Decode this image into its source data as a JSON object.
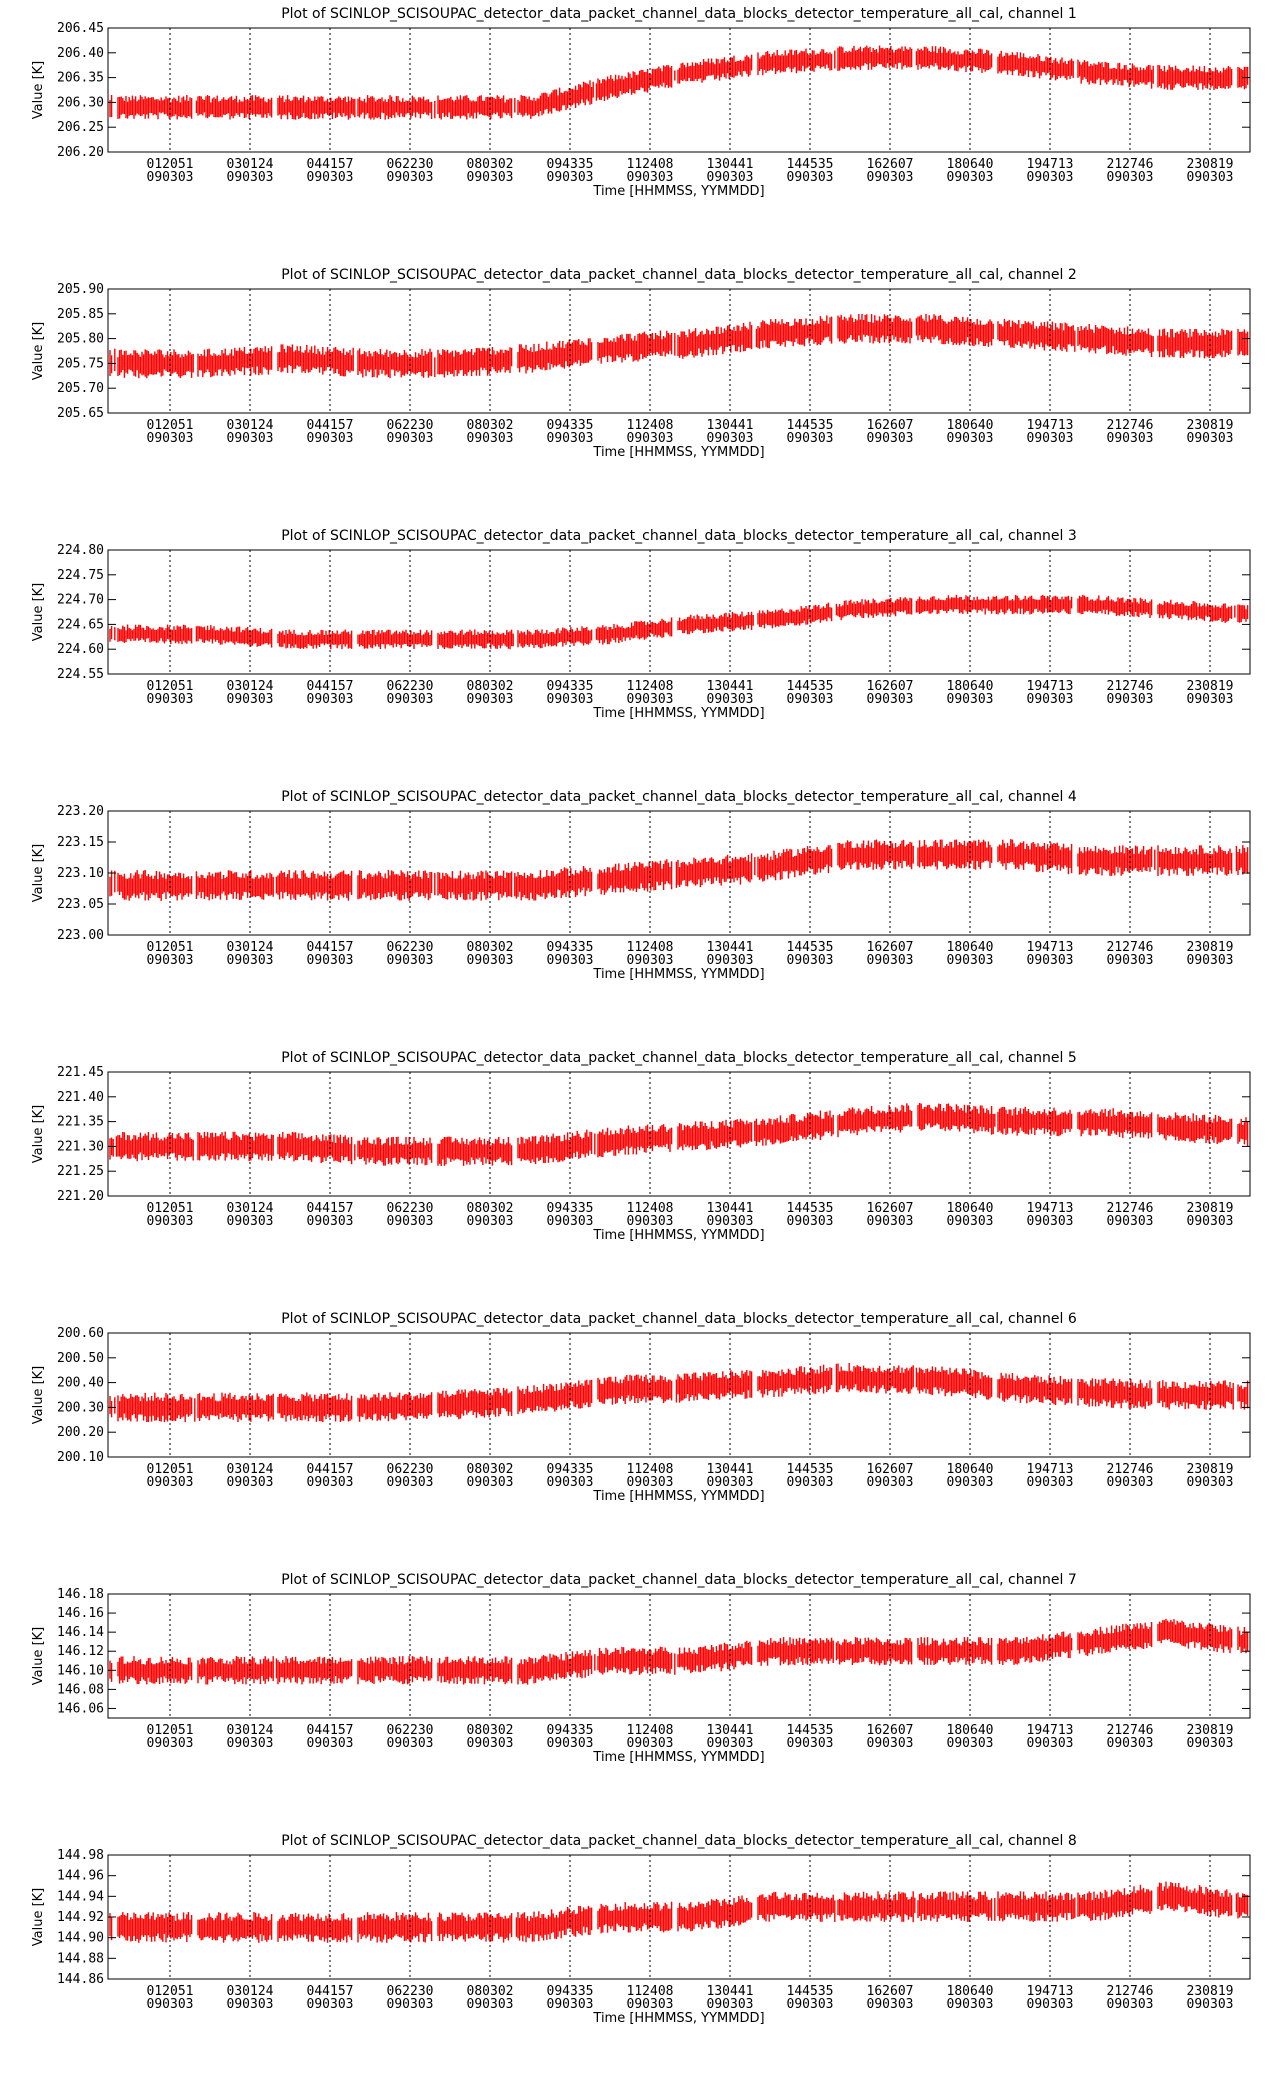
{
  "colors": {
    "data": "#ff0000",
    "axes": "#000000",
    "background": "#ffffff"
  },
  "chart_data": [
    {
      "type": "line",
      "title": "Plot of SCINLOP_SCISOUPAC_detector_data_packet_channel_data_blocks_detector_temperature_all_cal, channel 1",
      "xlabel": "Time [HHMMSS, YYMMDD]",
      "ylabel": "Value [K]",
      "y_ticks": [
        "206.20",
        "206.25",
        "206.30",
        "206.35",
        "206.40",
        "206.45"
      ],
      "ylim": [
        206.2,
        206.45
      ],
      "x_ticks": [
        {
          "time": "012051",
          "date": "090303"
        },
        {
          "time": "030124",
          "date": "090303"
        },
        {
          "time": "044157",
          "date": "090303"
        },
        {
          "time": "062230",
          "date": "090303"
        },
        {
          "time": "080302",
          "date": "090303"
        },
        {
          "time": "094335",
          "date": "090303"
        },
        {
          "time": "112408",
          "date": "090303"
        },
        {
          "time": "130441",
          "date": "090303"
        },
        {
          "time": "144535",
          "date": "090303"
        },
        {
          "time": "162607",
          "date": "090303"
        },
        {
          "time": "180640",
          "date": "090303"
        },
        {
          "time": "194713",
          "date": "090303"
        },
        {
          "time": "212746",
          "date": "090303"
        },
        {
          "time": "230819",
          "date": "090303"
        }
      ],
      "grid": "vertical dotted at x ticks",
      "series": [
        {
          "x": [
            0.5,
            1.5,
            2.5,
            3.5,
            4.5,
            5.5,
            6.5,
            7.5,
            8.5,
            9.5,
            10.5,
            11.5,
            12.5,
            13.5
          ],
          "values": [
            206.29,
            206.29,
            206.29,
            206.29,
            206.29,
            206.33,
            206.36,
            206.38,
            206.39,
            206.39,
            206.38,
            206.36,
            206.35,
            206.35
          ],
          "spread": 0.05
        }
      ]
    },
    {
      "type": "line",
      "title": "Plot of SCINLOP_SCISOUPAC_detector_data_packet_channel_data_blocks_detector_temperature_all_cal, channel 2",
      "xlabel": "Time [HHMMSS, YYMMDD]",
      "ylabel": "Value [K]",
      "y_ticks": [
        "205.65",
        "205.70",
        "205.75",
        "205.80",
        "205.85",
        "205.90"
      ],
      "ylim": [
        205.65,
        205.9
      ],
      "x_ticks": [
        {
          "time": "012051",
          "date": "090303"
        },
        {
          "time": "030124",
          "date": "090303"
        },
        {
          "time": "044157",
          "date": "090303"
        },
        {
          "time": "062230",
          "date": "090303"
        },
        {
          "time": "080302",
          "date": "090303"
        },
        {
          "time": "094335",
          "date": "090303"
        },
        {
          "time": "112408",
          "date": "090303"
        },
        {
          "time": "130441",
          "date": "090303"
        },
        {
          "time": "144535",
          "date": "090303"
        },
        {
          "time": "162607",
          "date": "090303"
        },
        {
          "time": "180640",
          "date": "090303"
        },
        {
          "time": "194713",
          "date": "090303"
        },
        {
          "time": "212746",
          "date": "090303"
        },
        {
          "time": "230819",
          "date": "090303"
        }
      ],
      "grid": "vertical dotted at x ticks",
      "series": [
        {
          "x": [
            0.5,
            1.5,
            2.5,
            3.5,
            4.5,
            5.5,
            6.5,
            7.5,
            8.5,
            9.5,
            10.5,
            11.5,
            12.5,
            13.5
          ],
          "values": [
            205.75,
            205.76,
            205.75,
            205.75,
            205.76,
            205.78,
            205.79,
            205.81,
            205.82,
            205.82,
            205.81,
            205.8,
            205.79,
            205.79
          ],
          "spread": 0.06
        }
      ]
    },
    {
      "type": "line",
      "title": "Plot of SCINLOP_SCISOUPAC_detector_data_packet_channel_data_blocks_detector_temperature_all_cal, channel 3",
      "xlabel": "Time [HHMMSS, YYMMDD]",
      "ylabel": "Value [K]",
      "y_ticks": [
        "224.55",
        "224.60",
        "224.65",
        "224.70",
        "224.75",
        "224.80"
      ],
      "ylim": [
        224.55,
        224.8
      ],
      "x_ticks": [
        {
          "time": "012051",
          "date": "090303"
        },
        {
          "time": "030124",
          "date": "090303"
        },
        {
          "time": "044157",
          "date": "090303"
        },
        {
          "time": "062230",
          "date": "090303"
        },
        {
          "time": "080302",
          "date": "090303"
        },
        {
          "time": "094335",
          "date": "090303"
        },
        {
          "time": "112408",
          "date": "090303"
        },
        {
          "time": "130441",
          "date": "090303"
        },
        {
          "time": "144535",
          "date": "090303"
        },
        {
          "time": "162607",
          "date": "090303"
        },
        {
          "time": "180640",
          "date": "090303"
        },
        {
          "time": "194713",
          "date": "090303"
        },
        {
          "time": "212746",
          "date": "090303"
        },
        {
          "time": "230819",
          "date": "090303"
        }
      ],
      "grid": "vertical dotted at x ticks",
      "series": [
        {
          "x": [
            0.5,
            1.5,
            2.5,
            3.5,
            4.5,
            5.5,
            6.5,
            7.5,
            8.5,
            9.5,
            10.5,
            11.5,
            12.5,
            13.5
          ],
          "values": [
            224.63,
            224.62,
            224.62,
            224.62,
            224.62,
            224.63,
            224.65,
            224.66,
            224.68,
            224.69,
            224.69,
            224.69,
            224.68,
            224.67
          ],
          "spread": 0.04
        }
      ]
    },
    {
      "type": "line",
      "title": "Plot of SCINLOP_SCISOUPAC_detector_data_packet_channel_data_blocks_detector_temperature_all_cal, channel 4",
      "xlabel": "Time [HHMMSS, YYMMDD]",
      "ylabel": "Value [K]",
      "y_ticks": [
        "223.00",
        "223.05",
        "223.10",
        "223.15",
        "223.20"
      ],
      "ylim": [
        223.0,
        223.2
      ],
      "x_ticks": [
        {
          "time": "012051",
          "date": "090303"
        },
        {
          "time": "030124",
          "date": "090303"
        },
        {
          "time": "044157",
          "date": "090303"
        },
        {
          "time": "062230",
          "date": "090303"
        },
        {
          "time": "080302",
          "date": "090303"
        },
        {
          "time": "094335",
          "date": "090303"
        },
        {
          "time": "112408",
          "date": "090303"
        },
        {
          "time": "130441",
          "date": "090303"
        },
        {
          "time": "144535",
          "date": "090303"
        },
        {
          "time": "162607",
          "date": "090303"
        },
        {
          "time": "180640",
          "date": "090303"
        },
        {
          "time": "194713",
          "date": "090303"
        },
        {
          "time": "212746",
          "date": "090303"
        },
        {
          "time": "230819",
          "date": "090303"
        }
      ],
      "grid": "vertical dotted at x ticks",
      "series": [
        {
          "x": [
            0.5,
            1.5,
            2.5,
            3.5,
            4.5,
            5.5,
            6.5,
            7.5,
            8.5,
            9.5,
            10.5,
            11.5,
            12.5,
            13.5
          ],
          "values": [
            223.08,
            223.08,
            223.08,
            223.08,
            223.08,
            223.09,
            223.1,
            223.11,
            223.13,
            223.13,
            223.13,
            223.12,
            223.12,
            223.12
          ],
          "spread": 0.05
        }
      ]
    },
    {
      "type": "line",
      "title": "Plot of SCINLOP_SCISOUPAC_detector_data_packet_channel_data_blocks_detector_temperature_all_cal, channel 5",
      "xlabel": "Time [HHMMSS, YYMMDD]",
      "ylabel": "Value [K]",
      "y_ticks": [
        "221.20",
        "221.25",
        "221.30",
        "221.35",
        "221.40",
        "221.45"
      ],
      "ylim": [
        221.2,
        221.45
      ],
      "x_ticks": [
        {
          "time": "012051",
          "date": "090303"
        },
        {
          "time": "030124",
          "date": "090303"
        },
        {
          "time": "044157",
          "date": "090303"
        },
        {
          "time": "062230",
          "date": "090303"
        },
        {
          "time": "080302",
          "date": "090303"
        },
        {
          "time": "094335",
          "date": "090303"
        },
        {
          "time": "112408",
          "date": "090303"
        },
        {
          "time": "130441",
          "date": "090303"
        },
        {
          "time": "144535",
          "date": "090303"
        },
        {
          "time": "162607",
          "date": "090303"
        },
        {
          "time": "180640",
          "date": "090303"
        },
        {
          "time": "194713",
          "date": "090303"
        },
        {
          "time": "212746",
          "date": "090303"
        },
        {
          "time": "230819",
          "date": "090303"
        }
      ],
      "grid": "vertical dotted at x ticks",
      "series": [
        {
          "x": [
            0.5,
            1.5,
            2.5,
            3.5,
            4.5,
            5.5,
            6.5,
            7.5,
            8.5,
            9.5,
            10.5,
            11.5,
            12.5,
            13.5
          ],
          "values": [
            221.3,
            221.3,
            221.29,
            221.29,
            221.29,
            221.31,
            221.32,
            221.33,
            221.35,
            221.36,
            221.35,
            221.35,
            221.34,
            221.33
          ],
          "spread": 0.06
        }
      ]
    },
    {
      "type": "line",
      "title": "Plot of SCINLOP_SCISOUPAC_detector_data_packet_channel_data_blocks_detector_temperature_all_cal, channel 6",
      "xlabel": "Time [HHMMSS, YYMMDD]",
      "ylabel": "Value [K]",
      "y_ticks": [
        "200.10",
        "200.20",
        "200.30",
        "200.40",
        "200.50",
        "200.60"
      ],
      "ylim": [
        200.1,
        200.6
      ],
      "x_ticks": [
        {
          "time": "012051",
          "date": "090303"
        },
        {
          "time": "030124",
          "date": "090303"
        },
        {
          "time": "044157",
          "date": "090303"
        },
        {
          "time": "062230",
          "date": "090303"
        },
        {
          "time": "080302",
          "date": "090303"
        },
        {
          "time": "094335",
          "date": "090303"
        },
        {
          "time": "112408",
          "date": "090303"
        },
        {
          "time": "130441",
          "date": "090303"
        },
        {
          "time": "144535",
          "date": "090303"
        },
        {
          "time": "162607",
          "date": "090303"
        },
        {
          "time": "180640",
          "date": "090303"
        },
        {
          "time": "194713",
          "date": "090303"
        },
        {
          "time": "212746",
          "date": "090303"
        },
        {
          "time": "230819",
          "date": "090303"
        }
      ],
      "grid": "vertical dotted at x ticks",
      "series": [
        {
          "x": [
            0.5,
            1.5,
            2.5,
            3.5,
            4.5,
            5.5,
            6.5,
            7.5,
            8.5,
            9.5,
            10.5,
            11.5,
            12.5,
            13.5
          ],
          "values": [
            200.3,
            200.3,
            200.3,
            200.31,
            200.33,
            200.37,
            200.38,
            200.4,
            200.42,
            200.41,
            200.38,
            200.36,
            200.35,
            200.35
          ],
          "spread": 0.12
        }
      ]
    },
    {
      "type": "line",
      "title": "Plot of SCINLOP_SCISOUPAC_detector_data_packet_channel_data_blocks_detector_temperature_all_cal, channel 7",
      "xlabel": "Time [HHMMSS, YYMMDD]",
      "ylabel": "Value [K]",
      "y_ticks": [
        "146.06",
        "146.08",
        "146.10",
        "146.12",
        "146.14",
        "146.16",
        "146.18"
      ],
      "ylim": [
        146.05,
        146.18
      ],
      "x_ticks": [
        {
          "time": "012051",
          "date": "090303"
        },
        {
          "time": "030124",
          "date": "090303"
        },
        {
          "time": "044157",
          "date": "090303"
        },
        {
          "time": "062230",
          "date": "090303"
        },
        {
          "time": "080302",
          "date": "090303"
        },
        {
          "time": "094335",
          "date": "090303"
        },
        {
          "time": "112408",
          "date": "090303"
        },
        {
          "time": "130441",
          "date": "090303"
        },
        {
          "time": "144535",
          "date": "090303"
        },
        {
          "time": "162607",
          "date": "090303"
        },
        {
          "time": "180640",
          "date": "090303"
        },
        {
          "time": "194713",
          "date": "090303"
        },
        {
          "time": "212746",
          "date": "090303"
        },
        {
          "time": "230819",
          "date": "090303"
        }
      ],
      "grid": "vertical dotted at x ticks",
      "series": [
        {
          "x": [
            0.5,
            1.5,
            2.5,
            3.5,
            4.5,
            5.5,
            6.5,
            7.5,
            8.5,
            9.5,
            10.5,
            11.5,
            12.5,
            13.5
          ],
          "values": [
            146.1,
            146.1,
            146.1,
            146.1,
            146.1,
            146.11,
            146.11,
            146.12,
            146.12,
            146.12,
            146.12,
            146.13,
            146.14,
            146.13
          ],
          "spread": 0.03
        }
      ]
    },
    {
      "type": "line",
      "title": "Plot of SCINLOP_SCISOUPAC_detector_data_packet_channel_data_blocks_detector_temperature_all_cal, channel 8",
      "xlabel": "Time [HHMMSS, YYMMDD]",
      "ylabel": "Value [K]",
      "y_ticks": [
        "144.86",
        "144.88",
        "144.90",
        "144.92",
        "144.94",
        "144.96",
        "144.98"
      ],
      "ylim": [
        144.86,
        144.98
      ],
      "x_ticks": [
        {
          "time": "012051",
          "date": "090303"
        },
        {
          "time": "030124",
          "date": "090303"
        },
        {
          "time": "044157",
          "date": "090303"
        },
        {
          "time": "062230",
          "date": "090303"
        },
        {
          "time": "080302",
          "date": "090303"
        },
        {
          "time": "094335",
          "date": "090303"
        },
        {
          "time": "112408",
          "date": "090303"
        },
        {
          "time": "130441",
          "date": "090303"
        },
        {
          "time": "144535",
          "date": "090303"
        },
        {
          "time": "162607",
          "date": "090303"
        },
        {
          "time": "180640",
          "date": "090303"
        },
        {
          "time": "194713",
          "date": "090303"
        },
        {
          "time": "212746",
          "date": "090303"
        },
        {
          "time": "230819",
          "date": "090303"
        }
      ],
      "grid": "vertical dotted at x ticks",
      "series": [
        {
          "x": [
            0.5,
            1.5,
            2.5,
            3.5,
            4.5,
            5.5,
            6.5,
            7.5,
            8.5,
            9.5,
            10.5,
            11.5,
            12.5,
            13.5
          ],
          "values": [
            144.91,
            144.91,
            144.91,
            144.91,
            144.91,
            144.92,
            144.92,
            144.93,
            144.93,
            144.93,
            144.93,
            144.93,
            144.94,
            144.93
          ],
          "spread": 0.03
        }
      ]
    }
  ]
}
